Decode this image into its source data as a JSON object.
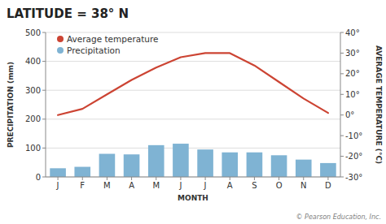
{
  "chart_data": {
    "type": "bar",
    "title": "LATITUDE = 38° N",
    "categories": [
      "J",
      "F",
      "M",
      "A",
      "M",
      "J",
      "J",
      "A",
      "S",
      "O",
      "N",
      "D"
    ],
    "series": [
      {
        "name": "Average temperature",
        "type": "line",
        "axis": "y2",
        "color": "#cc4433",
        "values": [
          0,
          3,
          10,
          17,
          23,
          28,
          30,
          30,
          24,
          16,
          8,
          1
        ]
      },
      {
        "name": "Precipitation",
        "type": "bar",
        "color": "#7fb3d3",
        "values": [
          30,
          35,
          80,
          78,
          110,
          115,
          95,
          85,
          85,
          75,
          60,
          48
        ]
      }
    ],
    "xlabel": "MONTH",
    "ylabel": "PRECIPITATION (mm)",
    "y2label": "AVERAGE TEMPERATURE (°C)",
    "ylim": [
      0,
      500
    ],
    "yticks": [
      0,
      100,
      200,
      300,
      400,
      500
    ],
    "y2lim": [
      -30,
      40
    ],
    "y2ticks": [
      {
        "value": -30,
        "label": "-30°"
      },
      {
        "value": -20,
        "label": "-20°"
      },
      {
        "value": -10,
        "label": "-10°"
      },
      {
        "value": 0,
        "label": "0°"
      },
      {
        "value": 10,
        "label": "10°"
      },
      {
        "value": 20,
        "label": "20°"
      },
      {
        "value": 30,
        "label": "30°"
      },
      {
        "value": 40,
        "label": "40°"
      }
    ],
    "grid": true,
    "legend": "upper left",
    "annotations": [
      "© Pearson Education, Inc."
    ]
  }
}
